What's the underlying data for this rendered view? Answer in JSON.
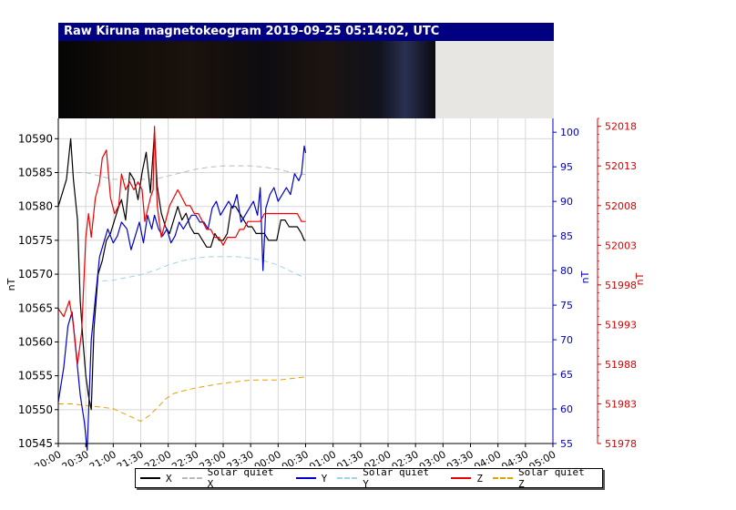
{
  "title": "Raw Kiruna magnetokeogram 2019-09-25 05:14:02, UTC",
  "chart_data": {
    "type": "line",
    "title": "Raw Kiruna magnetokeogram 2019-09-25 05:14:02, UTC",
    "x_tick_labels": [
      "20:00",
      "20:30",
      "21:00",
      "21:30",
      "22:00",
      "22:30",
      "23:00",
      "23:30",
      "00:00",
      "00:30",
      "01:00",
      "01:30",
      "02:00",
      "02:30",
      "03:00",
      "03:30",
      "04:00",
      "04:30",
      "05:00"
    ],
    "x_unit": "UTC time",
    "axes": {
      "left": {
        "label": "nT",
        "ylim": [
          10545,
          10593
        ],
        "ticks": [
          10545,
          10550,
          10555,
          10560,
          10565,
          10570,
          10575,
          10580,
          10585,
          10590
        ],
        "color": "#000000"
      },
      "blue": {
        "label": "nT",
        "ylim": [
          55,
          102
        ],
        "ticks": [
          55,
          60,
          65,
          70,
          75,
          80,
          85,
          90,
          95,
          100
        ],
        "color": "#0000cc"
      },
      "red": {
        "label": "nT",
        "ylim": [
          51978,
          52019
        ],
        "ticks": [
          51978,
          51983,
          51988,
          51993,
          51998,
          52003,
          52008,
          52013,
          52018
        ],
        "color": "#dd0000"
      }
    },
    "grid": true,
    "legend_placement": "bottom",
    "series": [
      {
        "name": "X",
        "axis": "left",
        "color": "#000000",
        "style": "solid",
        "points": [
          [
            0,
            10580
          ],
          [
            0.15,
            10582
          ],
          [
            0.3,
            10584
          ],
          [
            0.45,
            10590
          ],
          [
            0.55,
            10584
          ],
          [
            0.7,
            10578
          ],
          [
            0.8,
            10566
          ],
          [
            0.9,
            10560
          ],
          [
            1.0,
            10555
          ],
          [
            1.1,
            10552
          ],
          [
            1.2,
            10550
          ],
          [
            1.3,
            10562
          ],
          [
            1.45,
            10570
          ],
          [
            1.6,
            10572
          ],
          [
            1.75,
            10575
          ],
          [
            1.9,
            10576
          ],
          [
            2.05,
            10578
          ],
          [
            2.2,
            10580
          ],
          [
            2.3,
            10581
          ],
          [
            2.45,
            10578
          ],
          [
            2.6,
            10585
          ],
          [
            2.75,
            10584
          ],
          [
            2.9,
            10581
          ],
          [
            3.05,
            10585
          ],
          [
            3.2,
            10588
          ],
          [
            3.35,
            10582
          ],
          [
            3.5,
            10591
          ],
          [
            3.6,
            10583
          ],
          [
            3.75,
            10579
          ],
          [
            3.9,
            10577
          ],
          [
            4.05,
            10576
          ],
          [
            4.2,
            10578
          ],
          [
            4.35,
            10580
          ],
          [
            4.5,
            10578
          ],
          [
            4.65,
            10579
          ],
          [
            4.8,
            10577
          ],
          [
            4.95,
            10576
          ],
          [
            5.1,
            10576
          ],
          [
            5.25,
            10575
          ],
          [
            5.4,
            10574
          ],
          [
            5.55,
            10574
          ],
          [
            5.7,
            10576
          ],
          [
            5.85,
            10575
          ],
          [
            6.0,
            10575
          ],
          [
            6.15,
            10576
          ],
          [
            6.3,
            10580
          ],
          [
            6.45,
            10580
          ],
          [
            6.6,
            10579
          ],
          [
            6.75,
            10578
          ],
          [
            6.9,
            10577
          ],
          [
            7.05,
            10577
          ],
          [
            7.2,
            10576
          ],
          [
            7.35,
            10576
          ],
          [
            7.5,
            10576
          ],
          [
            7.65,
            10575
          ],
          [
            7.8,
            10575
          ],
          [
            7.95,
            10575
          ],
          [
            8.1,
            10578
          ],
          [
            8.25,
            10578
          ],
          [
            8.4,
            10577
          ],
          [
            8.55,
            10577
          ],
          [
            8.7,
            10577
          ],
          [
            8.85,
            10576
          ],
          [
            8.95,
            10575
          ],
          [
            9.0,
            10575
          ]
        ]
      },
      {
        "name": "Solar quiet X",
        "axis": "left",
        "color": "#bbbbbb",
        "style": "dashed",
        "points": [
          [
            0,
            10585
          ],
          [
            0.5,
            10585
          ],
          [
            1.0,
            10585
          ],
          [
            1.5,
            10584.5
          ],
          [
            2.0,
            10584
          ],
          [
            2.5,
            10584
          ],
          [
            3.0,
            10584
          ],
          [
            3.5,
            10584
          ],
          [
            4.0,
            10584.5
          ],
          [
            4.5,
            10585
          ],
          [
            5.0,
            10585.5
          ],
          [
            5.5,
            10585.8
          ],
          [
            6.0,
            10586
          ],
          [
            6.5,
            10586
          ],
          [
            7.0,
            10586
          ],
          [
            7.5,
            10585.8
          ],
          [
            8.0,
            10585.5
          ],
          [
            8.5,
            10585
          ],
          [
            9.0,
            10584.7
          ]
        ]
      },
      {
        "name": "Y",
        "axis": "blue",
        "color": "#0000cc",
        "style": "solid",
        "points": [
          [
            0,
            61
          ],
          [
            0.2,
            66
          ],
          [
            0.35,
            72
          ],
          [
            0.5,
            74
          ],
          [
            0.65,
            68
          ],
          [
            0.8,
            62
          ],
          [
            0.95,
            58
          ],
          [
            1.05,
            54
          ],
          [
            1.2,
            70
          ],
          [
            1.35,
            76
          ],
          [
            1.5,
            82
          ],
          [
            1.65,
            84
          ],
          [
            1.8,
            86
          ],
          [
            2.0,
            84
          ],
          [
            2.15,
            85
          ],
          [
            2.3,
            87
          ],
          [
            2.5,
            86
          ],
          [
            2.65,
            83
          ],
          [
            2.8,
            85
          ],
          [
            2.95,
            87
          ],
          [
            3.1,
            84
          ],
          [
            3.25,
            88
          ],
          [
            3.4,
            86
          ],
          [
            3.5,
            88
          ],
          [
            3.65,
            86
          ],
          [
            3.8,
            85
          ],
          [
            3.95,
            86
          ],
          [
            4.1,
            84
          ],
          [
            4.25,
            85
          ],
          [
            4.4,
            87
          ],
          [
            4.55,
            86
          ],
          [
            4.7,
            87
          ],
          [
            4.85,
            88
          ],
          [
            5.0,
            88
          ],
          [
            5.15,
            87
          ],
          [
            5.3,
            87
          ],
          [
            5.45,
            86
          ],
          [
            5.6,
            89
          ],
          [
            5.75,
            90
          ],
          [
            5.9,
            88
          ],
          [
            6.05,
            89
          ],
          [
            6.2,
            90
          ],
          [
            6.35,
            89
          ],
          [
            6.5,
            91
          ],
          [
            6.65,
            87
          ],
          [
            6.8,
            88
          ],
          [
            6.95,
            89
          ],
          [
            7.1,
            90
          ],
          [
            7.25,
            88
          ],
          [
            7.35,
            92
          ],
          [
            7.45,
            80
          ],
          [
            7.55,
            89
          ],
          [
            7.7,
            91
          ],
          [
            7.85,
            92
          ],
          [
            8.0,
            90
          ],
          [
            8.15,
            91
          ],
          [
            8.3,
            92
          ],
          [
            8.45,
            91
          ],
          [
            8.6,
            94
          ],
          [
            8.75,
            93
          ],
          [
            8.85,
            94
          ],
          [
            8.95,
            98
          ],
          [
            9.0,
            97
          ]
        ]
      },
      {
        "name": "Solar quiet Y",
        "axis": "blue",
        "color": "#9dd3ea",
        "style": "dashed",
        "points": [
          [
            1.6,
            78.5
          ],
          [
            2.0,
            78.6
          ],
          [
            2.5,
            79
          ],
          [
            3.0,
            79.4
          ],
          [
            3.5,
            80
          ],
          [
            4.0,
            80.8
          ],
          [
            4.5,
            81.4
          ],
          [
            5.0,
            81.8
          ],
          [
            5.5,
            82
          ],
          [
            6.0,
            82
          ],
          [
            6.5,
            82
          ],
          [
            7.0,
            81.8
          ],
          [
            7.5,
            81.4
          ],
          [
            8.0,
            80.8
          ],
          [
            8.5,
            79.8
          ],
          [
            9.0,
            78.9
          ]
        ]
      },
      {
        "name": "Z",
        "axis": "red",
        "color": "#ee0000",
        "style": "solid",
        "points": [
          [
            0,
            51995
          ],
          [
            0.2,
            51994
          ],
          [
            0.4,
            51996
          ],
          [
            0.55,
            51993
          ],
          [
            0.7,
            51988
          ],
          [
            0.85,
            51992
          ],
          [
            1.0,
            52004
          ],
          [
            1.1,
            52007
          ],
          [
            1.2,
            52004
          ],
          [
            1.35,
            52009
          ],
          [
            1.5,
            52011
          ],
          [
            1.6,
            52014
          ],
          [
            1.75,
            52015
          ],
          [
            1.9,
            52009
          ],
          [
            2.05,
            52007
          ],
          [
            2.2,
            52008
          ],
          [
            2.3,
            52012
          ],
          [
            2.45,
            52010
          ],
          [
            2.6,
            52011
          ],
          [
            2.75,
            52010
          ],
          [
            2.9,
            52011
          ],
          [
            3.05,
            52010
          ],
          [
            3.15,
            52006
          ],
          [
            3.35,
            52009
          ],
          [
            3.45,
            52010
          ],
          [
            3.5,
            52018
          ],
          [
            3.6,
            52008
          ],
          [
            3.75,
            52004
          ],
          [
            3.9,
            52006
          ],
          [
            4.05,
            52008
          ],
          [
            4.2,
            52009
          ],
          [
            4.35,
            52010
          ],
          [
            4.5,
            52009
          ],
          [
            4.65,
            52008
          ],
          [
            4.8,
            52008
          ],
          [
            4.95,
            52007
          ],
          [
            5.1,
            52007
          ],
          [
            5.25,
            52006
          ],
          [
            5.4,
            52005
          ],
          [
            5.55,
            52005
          ],
          [
            5.7,
            52004
          ],
          [
            5.85,
            52004
          ],
          [
            6.0,
            52003
          ],
          [
            6.15,
            52004
          ],
          [
            6.3,
            52004
          ],
          [
            6.45,
            52004
          ],
          [
            6.6,
            52005
          ],
          [
            6.75,
            52005
          ],
          [
            6.9,
            52006
          ],
          [
            7.05,
            52006
          ],
          [
            7.2,
            52006
          ],
          [
            7.35,
            52006
          ],
          [
            7.5,
            52007
          ],
          [
            7.65,
            52007
          ],
          [
            7.8,
            52007
          ],
          [
            7.95,
            52007
          ],
          [
            8.1,
            52007
          ],
          [
            8.25,
            52007
          ],
          [
            8.4,
            52007
          ],
          [
            8.55,
            52007
          ],
          [
            8.7,
            52007
          ],
          [
            8.85,
            52006
          ],
          [
            9.0,
            52006
          ]
        ]
      },
      {
        "name": "Solar quiet Z",
        "axis": "red",
        "color": "#e6a100",
        "style": "dashed",
        "points": [
          [
            0,
            51983
          ],
          [
            0.5,
            51983
          ],
          [
            1.0,
            51982.8
          ],
          [
            1.5,
            51982.6
          ],
          [
            2.0,
            51982.4
          ],
          [
            2.5,
            51981.6
          ],
          [
            3.0,
            51980.8
          ],
          [
            3.3,
            51981.5
          ],
          [
            3.6,
            51982.5
          ],
          [
            3.9,
            51983.6
          ],
          [
            4.2,
            51984.3
          ],
          [
            4.5,
            51984.6
          ],
          [
            5.0,
            51985
          ],
          [
            5.5,
            51985.3
          ],
          [
            6.0,
            51985.6
          ],
          [
            6.5,
            51985.8
          ],
          [
            7.0,
            51986
          ],
          [
            7.5,
            51986
          ],
          [
            8.0,
            51986
          ],
          [
            8.5,
            51986.2
          ],
          [
            9.0,
            51986.4
          ]
        ]
      }
    ]
  }
}
